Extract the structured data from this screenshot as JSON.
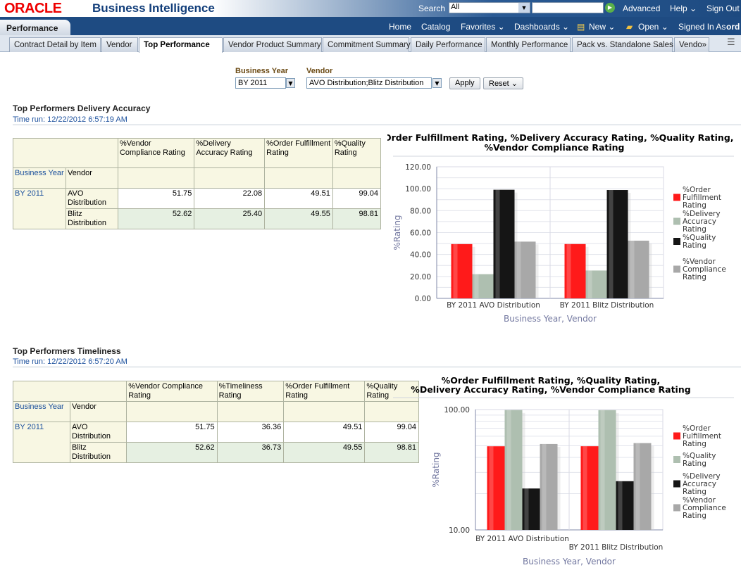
{
  "header": {
    "logo": "ORACLE",
    "product": "Business Intelligence",
    "search_label": "Search",
    "search_scope": "All",
    "search_value": "",
    "advanced": "Advanced",
    "help": "Help ⌄",
    "signout": "Sign Out"
  },
  "nav": {
    "dashboard": "Performance",
    "home": "Home",
    "catalog": "Catalog",
    "favorites": "Favorites ⌄",
    "dashboards": "Dashboards ⌄",
    "new": "New ⌄",
    "open": "Open ⌄",
    "signed_in": "Signed In As",
    "user": "ord"
  },
  "tabs": [
    "Contract Detail by Item",
    "Vendor",
    "Top Performance",
    "Vendor Product Summary",
    "Commitment Summary",
    "Daily Performance",
    "Monthly Performance",
    "Pack vs. Standalone Sales",
    "Vendo»"
  ],
  "prompts": {
    "year_label": "Business Year",
    "year_value": "BY 2011",
    "vendor_label": "Vendor",
    "vendor_value": "AVO Distribution;Blitz Distribution",
    "apply": "Apply",
    "reset": "Reset ⌄"
  },
  "section1": {
    "title": "Top Performers Delivery Accuracy",
    "time_run": "Time run:  12/22/2012 6:57:19 AM",
    "columns": [
      "%Vendor Compliance Rating",
      "%Delivery Accuracy Rating",
      "%Order Fulfillment Rating",
      "%Quality Rating"
    ],
    "row_headers": [
      "Business Year",
      "Vendor"
    ],
    "year": "BY 2011",
    "rows": [
      {
        "vendor": "AVO Distribution",
        "values": [
          "51.75",
          "22.08",
          "49.51",
          "99.04"
        ]
      },
      {
        "vendor": "Blitz Distribution",
        "values": [
          "52.62",
          "25.40",
          "49.55",
          "98.81"
        ]
      }
    ]
  },
  "section2": {
    "title": "Top Performers Timeliness",
    "time_run": "Time run:  12/22/2012 6:57:20 AM",
    "columns": [
      "%Vendor Compliance Rating",
      "%Timeliness Rating",
      "%Order Fulfillment Rating",
      "%Quality Rating"
    ],
    "row_headers": [
      "Business Year",
      "Vendor"
    ],
    "year": "BY 2011",
    "rows": [
      {
        "vendor": "AVO Distribution",
        "values": [
          "51.75",
          "36.36",
          "49.51",
          "99.04"
        ]
      },
      {
        "vendor": "Blitz Distribution",
        "values": [
          "52.62",
          "36.73",
          "49.55",
          "98.81"
        ]
      }
    ]
  },
  "chart_data": [
    {
      "type": "bar",
      "title": "%Order Fulfillment Rating, %Delivery Accuracy Rating, %Quality Rating, %Vendor Compliance Rating",
      "xlabel": "Business Year, Vendor",
      "ylabel": "%Rating",
      "scale": "linear",
      "ylim": [
        0,
        120
      ],
      "yticks": [
        "0.00",
        "20.00",
        "40.00",
        "60.00",
        "80.00",
        "100.00",
        "120.00"
      ],
      "legend": "right",
      "categories": [
        "BY 2011 AVO Distribution",
        "BY 2011 Blitz Distribution"
      ],
      "series": [
        {
          "name": "%Order Fulfillment Rating",
          "color": "#ff1a1a",
          "values": [
            49.51,
            49.55
          ]
        },
        {
          "name": "%Delivery Accuracy Rating",
          "color": "#aebfb0",
          "values": [
            22.08,
            25.4
          ]
        },
        {
          "name": "%Quality Rating",
          "color": "#151515",
          "values": [
            99.04,
            98.81
          ]
        },
        {
          "name": "%Vendor Compliance Rating",
          "color": "#a8a8a8",
          "values": [
            51.75,
            52.62
          ]
        }
      ]
    },
    {
      "type": "bar",
      "title": "%Order Fulfillment Rating, %Quality Rating, %Delivery Accuracy Rating, %Vendor Compliance Rating",
      "xlabel": "Business Year, Vendor",
      "ylabel": "%Rating",
      "scale": "log",
      "ylim": [
        10,
        100
      ],
      "yticks": [
        "10.00",
        "100.00"
      ],
      "legend": "right",
      "categories": [
        "BY 2011 AVO Distribution",
        "BY 2011 Blitz Distribution"
      ],
      "series": [
        {
          "name": "%Order Fulfillment Rating",
          "color": "#ff1a1a",
          "values": [
            49.51,
            49.55
          ]
        },
        {
          "name": "%Quality Rating",
          "color": "#aebfb0",
          "values": [
            99.04,
            98.81
          ]
        },
        {
          "name": "%Delivery Accuracy Rating",
          "color": "#151515",
          "values": [
            22.08,
            25.4
          ]
        },
        {
          "name": "%Vendor Compliance Rating",
          "color": "#a8a8a8",
          "values": [
            51.75,
            52.62
          ]
        }
      ]
    }
  ]
}
